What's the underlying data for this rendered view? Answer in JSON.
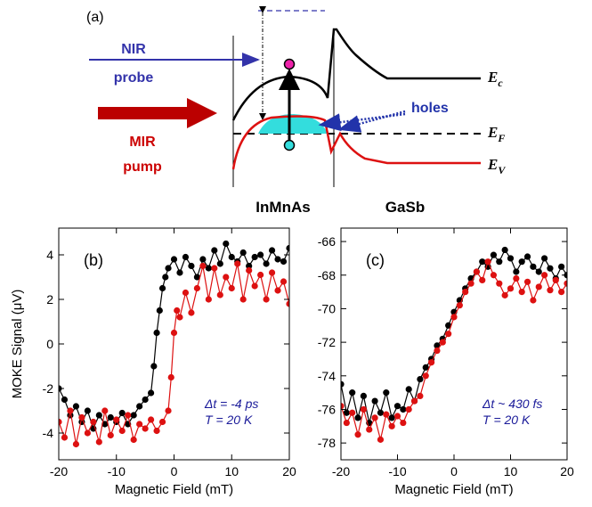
{
  "diagram": {
    "panel_label": "(a)",
    "nir_label_line1": "NIR",
    "nir_label_line2": "probe",
    "mir_label_line1": "MIR",
    "mir_label_line2": "pump",
    "holes_label": "holes",
    "ec_label_main": "E",
    "ec_label_sub": "c",
    "ef_label_main": "E",
    "ef_label_sub": "F",
    "ev_label_main": "E",
    "ev_label_sub": "V",
    "layer_left": "InMnAs",
    "layer_right": "GaSb",
    "colors": {
      "nir": "#3333aa",
      "mir": "#cc0000",
      "hole_fill": "#33dddd",
      "band": "#000000"
    }
  },
  "chart_data": [
    {
      "type": "line",
      "panel_label": "(b)",
      "xlabel": "Magnetic Field (mT)",
      "ylabel": "MOKE Signal (μV)",
      "xlim": [
        -20,
        20
      ],
      "ylim": [
        -5.2,
        5.2
      ],
      "xticks": [
        -20,
        -10,
        0,
        10,
        20
      ],
      "yticks": [
        -4,
        -2,
        0,
        2,
        4
      ],
      "annotation_line1": "Δt = -4 ps",
      "annotation_line2": "T = 20 K",
      "series": [
        {
          "color": "#000000",
          "x": [
            -20,
            -19,
            -18,
            -17,
            -16,
            -15,
            -14,
            -13,
            -12,
            -11,
            -10,
            -9,
            -8,
            -7,
            -6,
            -5,
            -4,
            -3.5,
            -3,
            -2.5,
            -2,
            -1.5,
            -1,
            0,
            1,
            2,
            3,
            4,
            5,
            6,
            7,
            8,
            9,
            10,
            11,
            12,
            13,
            14,
            15,
            16,
            17,
            18,
            19,
            20
          ],
          "y": [
            -2,
            -2.5,
            -3.2,
            -2.8,
            -3.5,
            -3,
            -3.8,
            -3.2,
            -3.6,
            -3.3,
            -3.5,
            -3.1,
            -3.6,
            -3.2,
            -2.8,
            -2.5,
            -2.2,
            -1,
            0.5,
            1.5,
            2.5,
            3,
            3.4,
            3.8,
            3.2,
            3.9,
            3.5,
            3.0,
            3.8,
            3.4,
            4.2,
            3.6,
            4.5,
            3.9,
            3.7,
            4.1,
            3.5,
            3.9,
            4.0,
            3.6,
            4.2,
            3.8,
            3.7,
            4.3
          ]
        },
        {
          "color": "#dd1111",
          "x": [
            -20,
            -19,
            -18,
            -17,
            -16,
            -15,
            -14,
            -13,
            -12,
            -11,
            -10,
            -9,
            -8,
            -7,
            -6,
            -5,
            -4,
            -3,
            -2,
            -1,
            -0.5,
            0,
            0.5,
            1,
            2,
            3,
            4,
            5,
            6,
            7,
            8,
            9,
            10,
            11,
            12,
            13,
            14,
            15,
            16,
            17,
            18,
            19,
            20
          ],
          "y": [
            -3.5,
            -4.2,
            -3.0,
            -4.5,
            -3.3,
            -4.0,
            -3.5,
            -4.4,
            -3.0,
            -4.1,
            -3.4,
            -3.9,
            -3.2,
            -4.3,
            -3.6,
            -3.8,
            -3.4,
            -3.9,
            -3.5,
            -3.0,
            -1.5,
            0.5,
            1.5,
            1.2,
            2.3,
            1.4,
            2.5,
            3.5,
            2.0,
            3.4,
            2.2,
            3.0,
            2.5,
            3.6,
            2.0,
            3.3,
            2.6,
            3.1,
            2.0,
            3.2,
            2.4,
            2.8,
            1.8
          ]
        }
      ]
    },
    {
      "type": "line",
      "panel_label": "(c)",
      "xlabel": "Magnetic Field (mT)",
      "ylabel": "",
      "xlim": [
        -20,
        20
      ],
      "ylim": [
        -79,
        -65.2
      ],
      "xticks": [
        -20,
        -10,
        0,
        10,
        20
      ],
      "yticks": [
        -78,
        -76,
        -74,
        -72,
        -70,
        -68,
        -66
      ],
      "annotation_line1": "Δt ~ 430 fs",
      "annotation_line2": "T = 20 K",
      "series": [
        {
          "color": "#000000",
          "x": [
            -20,
            -19,
            -18,
            -17,
            -16,
            -15,
            -14,
            -13,
            -12,
            -11,
            -10,
            -9,
            -8,
            -7,
            -6,
            -5,
            -4,
            -3,
            -2,
            -1,
            0,
            1,
            2,
            3,
            4,
            5,
            6,
            7,
            8,
            9,
            10,
            11,
            12,
            13,
            14,
            15,
            16,
            17,
            18,
            19,
            20
          ],
          "y": [
            -74.5,
            -76.2,
            -75.0,
            -76.5,
            -75.2,
            -76.8,
            -75.5,
            -76.2,
            -75.0,
            -76.5,
            -75.8,
            -76.0,
            -74.8,
            -75.5,
            -74.2,
            -73.5,
            -73.0,
            -72.2,
            -71.8,
            -71.0,
            -70.2,
            -69.5,
            -68.8,
            -68.2,
            -67.8,
            -67.2,
            -67.5,
            -66.8,
            -67.2,
            -66.5,
            -67.0,
            -67.8,
            -67.2,
            -66.9,
            -67.5,
            -67.8,
            -67.0,
            -67.6,
            -68.2,
            -67.5,
            -68.0
          ]
        },
        {
          "color": "#dd1111",
          "x": [
            -20,
            -19,
            -18,
            -17,
            -16,
            -15,
            -14,
            -13,
            -12,
            -11,
            -10,
            -9,
            -8,
            -7,
            -6,
            -5,
            -4,
            -3,
            -2,
            -1,
            0,
            1,
            2,
            3,
            4,
            5,
            6,
            7,
            8,
            9,
            10,
            11,
            12,
            13,
            14,
            15,
            16,
            17,
            18,
            19,
            20
          ],
          "y": [
            -75.8,
            -76.8,
            -76.2,
            -77.5,
            -76.0,
            -77.2,
            -76.5,
            -77.8,
            -76.3,
            -77.0,
            -76.4,
            -76.8,
            -76.0,
            -75.5,
            -75.2,
            -74.0,
            -73.2,
            -72.5,
            -72.0,
            -71.5,
            -70.5,
            -69.8,
            -69.0,
            -68.5,
            -67.8,
            -68.3,
            -67.2,
            -68.0,
            -68.5,
            -69.2,
            -68.8,
            -68.2,
            -69.0,
            -68.4,
            -69.5,
            -68.7,
            -68.0,
            -68.9,
            -68.3,
            -69.0,
            -68.5
          ]
        }
      ]
    }
  ]
}
